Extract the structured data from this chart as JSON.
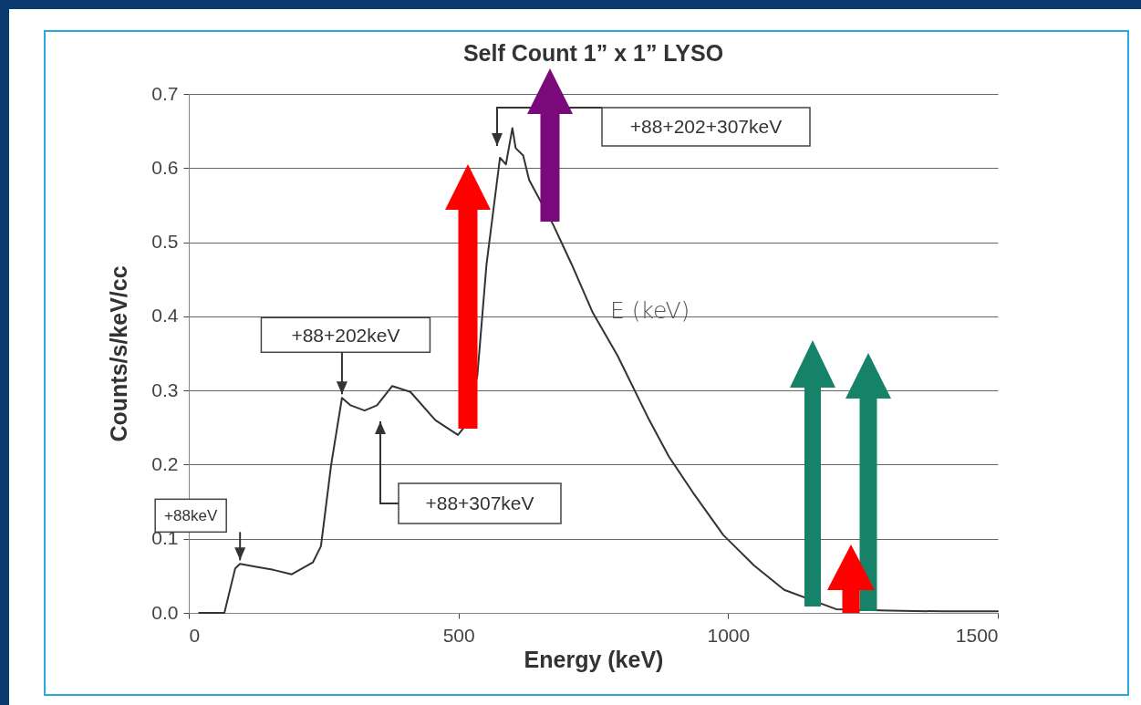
{
  "chart_data": {
    "type": "line",
    "title": "Self Count 1” x 1” LYSO",
    "xlabel": "Energy (keV)",
    "ylabel": "Counts/s/keV/cc",
    "x": [
      19,
      66,
      86,
      95,
      125,
      157,
      191,
      230,
      245,
      264,
      284,
      300,
      326,
      349,
      377,
      411,
      457,
      499,
      510,
      535,
      552,
      577,
      588,
      600,
      606,
      620,
      631,
      676,
      710,
      749,
      795,
      851,
      890,
      935,
      991,
      1048,
      1104,
      1200,
      1300,
      1400,
      1500
    ],
    "series": [
      {
        "color": "#333333",
        "values": [
          0,
          0,
          0.06,
          0.066,
          0.062,
          0.058,
          0.052,
          0.068,
          0.09,
          0.2,
          0.29,
          0.28,
          0.273,
          0.28,
          0.306,
          0.298,
          0.26,
          0.24,
          0.25,
          0.32,
          0.47,
          0.614,
          0.605,
          0.654,
          0.627,
          0.617,
          0.584,
          0.523,
          0.47,
          0.405,
          0.347,
          0.264,
          0.211,
          0.162,
          0.105,
          0.064,
          0.031,
          0.005,
          0.003,
          0.002,
          0.002
        ]
      }
    ],
    "xlim": [
      0,
      1500
    ],
    "xticks": [
      0,
      500,
      1000,
      1500
    ],
    "ylim": [
      0,
      0.7
    ],
    "yticks": [
      {
        "value": 0,
        "label": "0.0"
      },
      0.1,
      0.2,
      0.3,
      0.4,
      0.5,
      0.6,
      0.7
    ],
    "grid": "y",
    "legend": false,
    "marker": "none",
    "line_style": "solid",
    "annotations": [
      {
        "text": "+88keV",
        "x": 95,
        "y": 0.066
      },
      {
        "text": "+88+202keV",
        "x": 284,
        "y": 0.29
      },
      "+88+307keV",
      "+88+202+307keV",
      "E (keV)"
    ]
  }
}
